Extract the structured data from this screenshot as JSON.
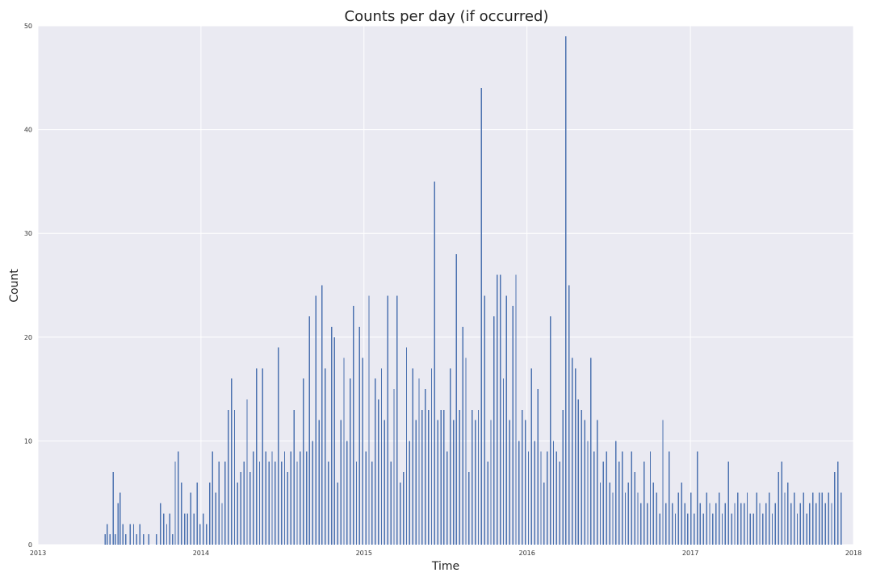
{
  "chart_data": {
    "type": "bar",
    "title": "Counts per day (if occurred)",
    "xlabel": "Time",
    "ylabel": "Count",
    "x_type": "date",
    "xlim": [
      "2013-01-01",
      "2018-01-01"
    ],
    "ylim": [
      0,
      50
    ],
    "x_ticks": [
      "2013",
      "2014",
      "2015",
      "2016",
      "2017",
      "2018"
    ],
    "y_ticks": [
      "0",
      "10",
      "20",
      "30",
      "40",
      "50"
    ],
    "grid": true,
    "legend": "none",
    "background_color": "#eaeaf2",
    "bar_color": "#4c72b0",
    "x": [
      "2013-05-30",
      "2013-06-04",
      "2013-06-10",
      "2013-06-17",
      "2013-06-22",
      "2013-06-28",
      "2013-07-03",
      "2013-07-09",
      "2013-07-15",
      "2013-07-25",
      "2013-08-02",
      "2013-08-09",
      "2013-08-16",
      "2013-08-24",
      "2013-09-05",
      "2013-09-22",
      "2013-10-01",
      "2013-10-08",
      "2013-10-15",
      "2013-10-22",
      "2013-10-28",
      "2013-11-03",
      "2013-11-10",
      "2013-11-17",
      "2013-11-24",
      "2013-12-01",
      "2013-12-08",
      "2013-12-15",
      "2013-12-22",
      "2013-12-29",
      "2014-01-05",
      "2014-01-12",
      "2014-01-19",
      "2014-01-26",
      "2014-02-02",
      "2014-02-09",
      "2014-02-16",
      "2014-02-23",
      "2014-03-02",
      "2014-03-09",
      "2014-03-16",
      "2014-03-23",
      "2014-03-30",
      "2014-04-06",
      "2014-04-13",
      "2014-04-20",
      "2014-04-27",
      "2014-05-04",
      "2014-05-11",
      "2014-05-18",
      "2014-05-25",
      "2014-06-01",
      "2014-06-08",
      "2014-06-15",
      "2014-06-22",
      "2014-06-29",
      "2014-07-06",
      "2014-07-13",
      "2014-07-20",
      "2014-07-27",
      "2014-08-03",
      "2014-08-10",
      "2014-08-17",
      "2014-08-24",
      "2014-08-31",
      "2014-09-07",
      "2014-09-14",
      "2014-09-21",
      "2014-09-28",
      "2014-10-05",
      "2014-10-12",
      "2014-10-19",
      "2014-10-26",
      "2014-11-02",
      "2014-11-09",
      "2014-11-16",
      "2014-11-23",
      "2014-11-30",
      "2014-12-07",
      "2014-12-14",
      "2014-12-21",
      "2014-12-28",
      "2015-01-04",
      "2015-01-11",
      "2015-01-18",
      "2015-01-25",
      "2015-02-01",
      "2015-02-08",
      "2015-02-15",
      "2015-02-22",
      "2015-03-01",
      "2015-03-08",
      "2015-03-15",
      "2015-03-22",
      "2015-03-29",
      "2015-04-05",
      "2015-04-12",
      "2015-04-19",
      "2015-04-26",
      "2015-05-03",
      "2015-05-10",
      "2015-05-17",
      "2015-05-24",
      "2015-05-31",
      "2015-06-07",
      "2015-06-14",
      "2015-06-21",
      "2015-06-28",
      "2015-07-05",
      "2015-07-12",
      "2015-07-19",
      "2015-07-26",
      "2015-08-02",
      "2015-08-09",
      "2015-08-16",
      "2015-08-23",
      "2015-08-30",
      "2015-09-06",
      "2015-09-13",
      "2015-09-20",
      "2015-09-27",
      "2015-10-04",
      "2015-10-11",
      "2015-10-18",
      "2015-10-25",
      "2015-11-01",
      "2015-11-08",
      "2015-11-15",
      "2015-11-22",
      "2015-11-29",
      "2015-12-06",
      "2015-12-13",
      "2015-12-20",
      "2015-12-27",
      "2016-01-03",
      "2016-01-10",
      "2016-01-17",
      "2016-01-24",
      "2016-01-31",
      "2016-02-07",
      "2016-02-14",
      "2016-02-21",
      "2016-02-28",
      "2016-03-06",
      "2016-03-13",
      "2016-03-20",
      "2016-03-27",
      "2016-04-03",
      "2016-04-10",
      "2016-04-17",
      "2016-04-24",
      "2016-05-01",
      "2016-05-08",
      "2016-05-15",
      "2016-05-22",
      "2016-05-29",
      "2016-06-05",
      "2016-06-12",
      "2016-06-19",
      "2016-06-26",
      "2016-07-03",
      "2016-07-10",
      "2016-07-17",
      "2016-07-24",
      "2016-07-31",
      "2016-08-07",
      "2016-08-14",
      "2016-08-21",
      "2016-08-28",
      "2016-09-04",
      "2016-09-11",
      "2016-09-18",
      "2016-09-25",
      "2016-10-02",
      "2016-10-09",
      "2016-10-16",
      "2016-10-23",
      "2016-10-30",
      "2016-11-06",
      "2016-11-13",
      "2016-11-20",
      "2016-11-27",
      "2016-12-04",
      "2016-12-11",
      "2016-12-18",
      "2016-12-25",
      "2017-01-01",
      "2017-01-08",
      "2017-01-15",
      "2017-01-22",
      "2017-01-29",
      "2017-02-05",
      "2017-02-12",
      "2017-02-19",
      "2017-02-26",
      "2017-03-05",
      "2017-03-12",
      "2017-03-19",
      "2017-03-26",
      "2017-04-02",
      "2017-04-09",
      "2017-04-16",
      "2017-04-23",
      "2017-04-30",
      "2017-05-07",
      "2017-05-14",
      "2017-05-21",
      "2017-05-28",
      "2017-06-04",
      "2017-06-11",
      "2017-06-18",
      "2017-06-25",
      "2017-07-02",
      "2017-07-09",
      "2017-07-16",
      "2017-07-23",
      "2017-07-30",
      "2017-08-06",
      "2017-08-13",
      "2017-08-20",
      "2017-08-27",
      "2017-09-03",
      "2017-09-10",
      "2017-09-17",
      "2017-09-24",
      "2017-10-01",
      "2017-10-08",
      "2017-10-15",
      "2017-10-22",
      "2017-10-29",
      "2017-11-05",
      "2017-11-12",
      "2017-11-19",
      "2017-11-26",
      "2017-12-03"
    ],
    "values": [
      1,
      2,
      1,
      7,
      1,
      4,
      5,
      2,
      1,
      2,
      2,
      1,
      2,
      1,
      1,
      1,
      4,
      3,
      2,
      3,
      1,
      8,
      9,
      6,
      3,
      3,
      5,
      3,
      6,
      2,
      3,
      2,
      6,
      9,
      5,
      8,
      4,
      8,
      13,
      16,
      13,
      6,
      7,
      8,
      14,
      7,
      9,
      17,
      8,
      17,
      9,
      8,
      9,
      8,
      19,
      8,
      9,
      7,
      9,
      13,
      8,
      9,
      16,
      9,
      22,
      10,
      24,
      12,
      25,
      17,
      8,
      21,
      20,
      6,
      12,
      18,
      10,
      16,
      23,
      8,
      21,
      18,
      9,
      24,
      8,
      16,
      14,
      17,
      12,
      24,
      8,
      15,
      24,
      6,
      7,
      19,
      10,
      17,
      12,
      16,
      13,
      15,
      13,
      17,
      35,
      12,
      13,
      13,
      9,
      17,
      12,
      28,
      13,
      21,
      18,
      7,
      13,
      12,
      13,
      44,
      24,
      8,
      12,
      22,
      26,
      26,
      16,
      24,
      12,
      23,
      26,
      10,
      13,
      12,
      9,
      17,
      10,
      15,
      9,
      6,
      9,
      22,
      10,
      9,
      8,
      13,
      49,
      25,
      18,
      17,
      14,
      13,
      12,
      10,
      18,
      9,
      12,
      6,
      8,
      9,
      6,
      5,
      10,
      8,
      9,
      5,
      6,
      9,
      7,
      5,
      4,
      8,
      4,
      9,
      6,
      5,
      3,
      12,
      4,
      9,
      4,
      3,
      5,
      6,
      4,
      3,
      5,
      3,
      9,
      4,
      3,
      5,
      4,
      3,
      4,
      5,
      3,
      4,
      8,
      3,
      4,
      5,
      4,
      4,
      5,
      3,
      3,
      5,
      4,
      3,
      4,
      5,
      3,
      4,
      7,
      8,
      5,
      6,
      4,
      5,
      3,
      4,
      5,
      3,
      4,
      5,
      4,
      5,
      5,
      4,
      5,
      4,
      7,
      8,
      5
    ]
  }
}
